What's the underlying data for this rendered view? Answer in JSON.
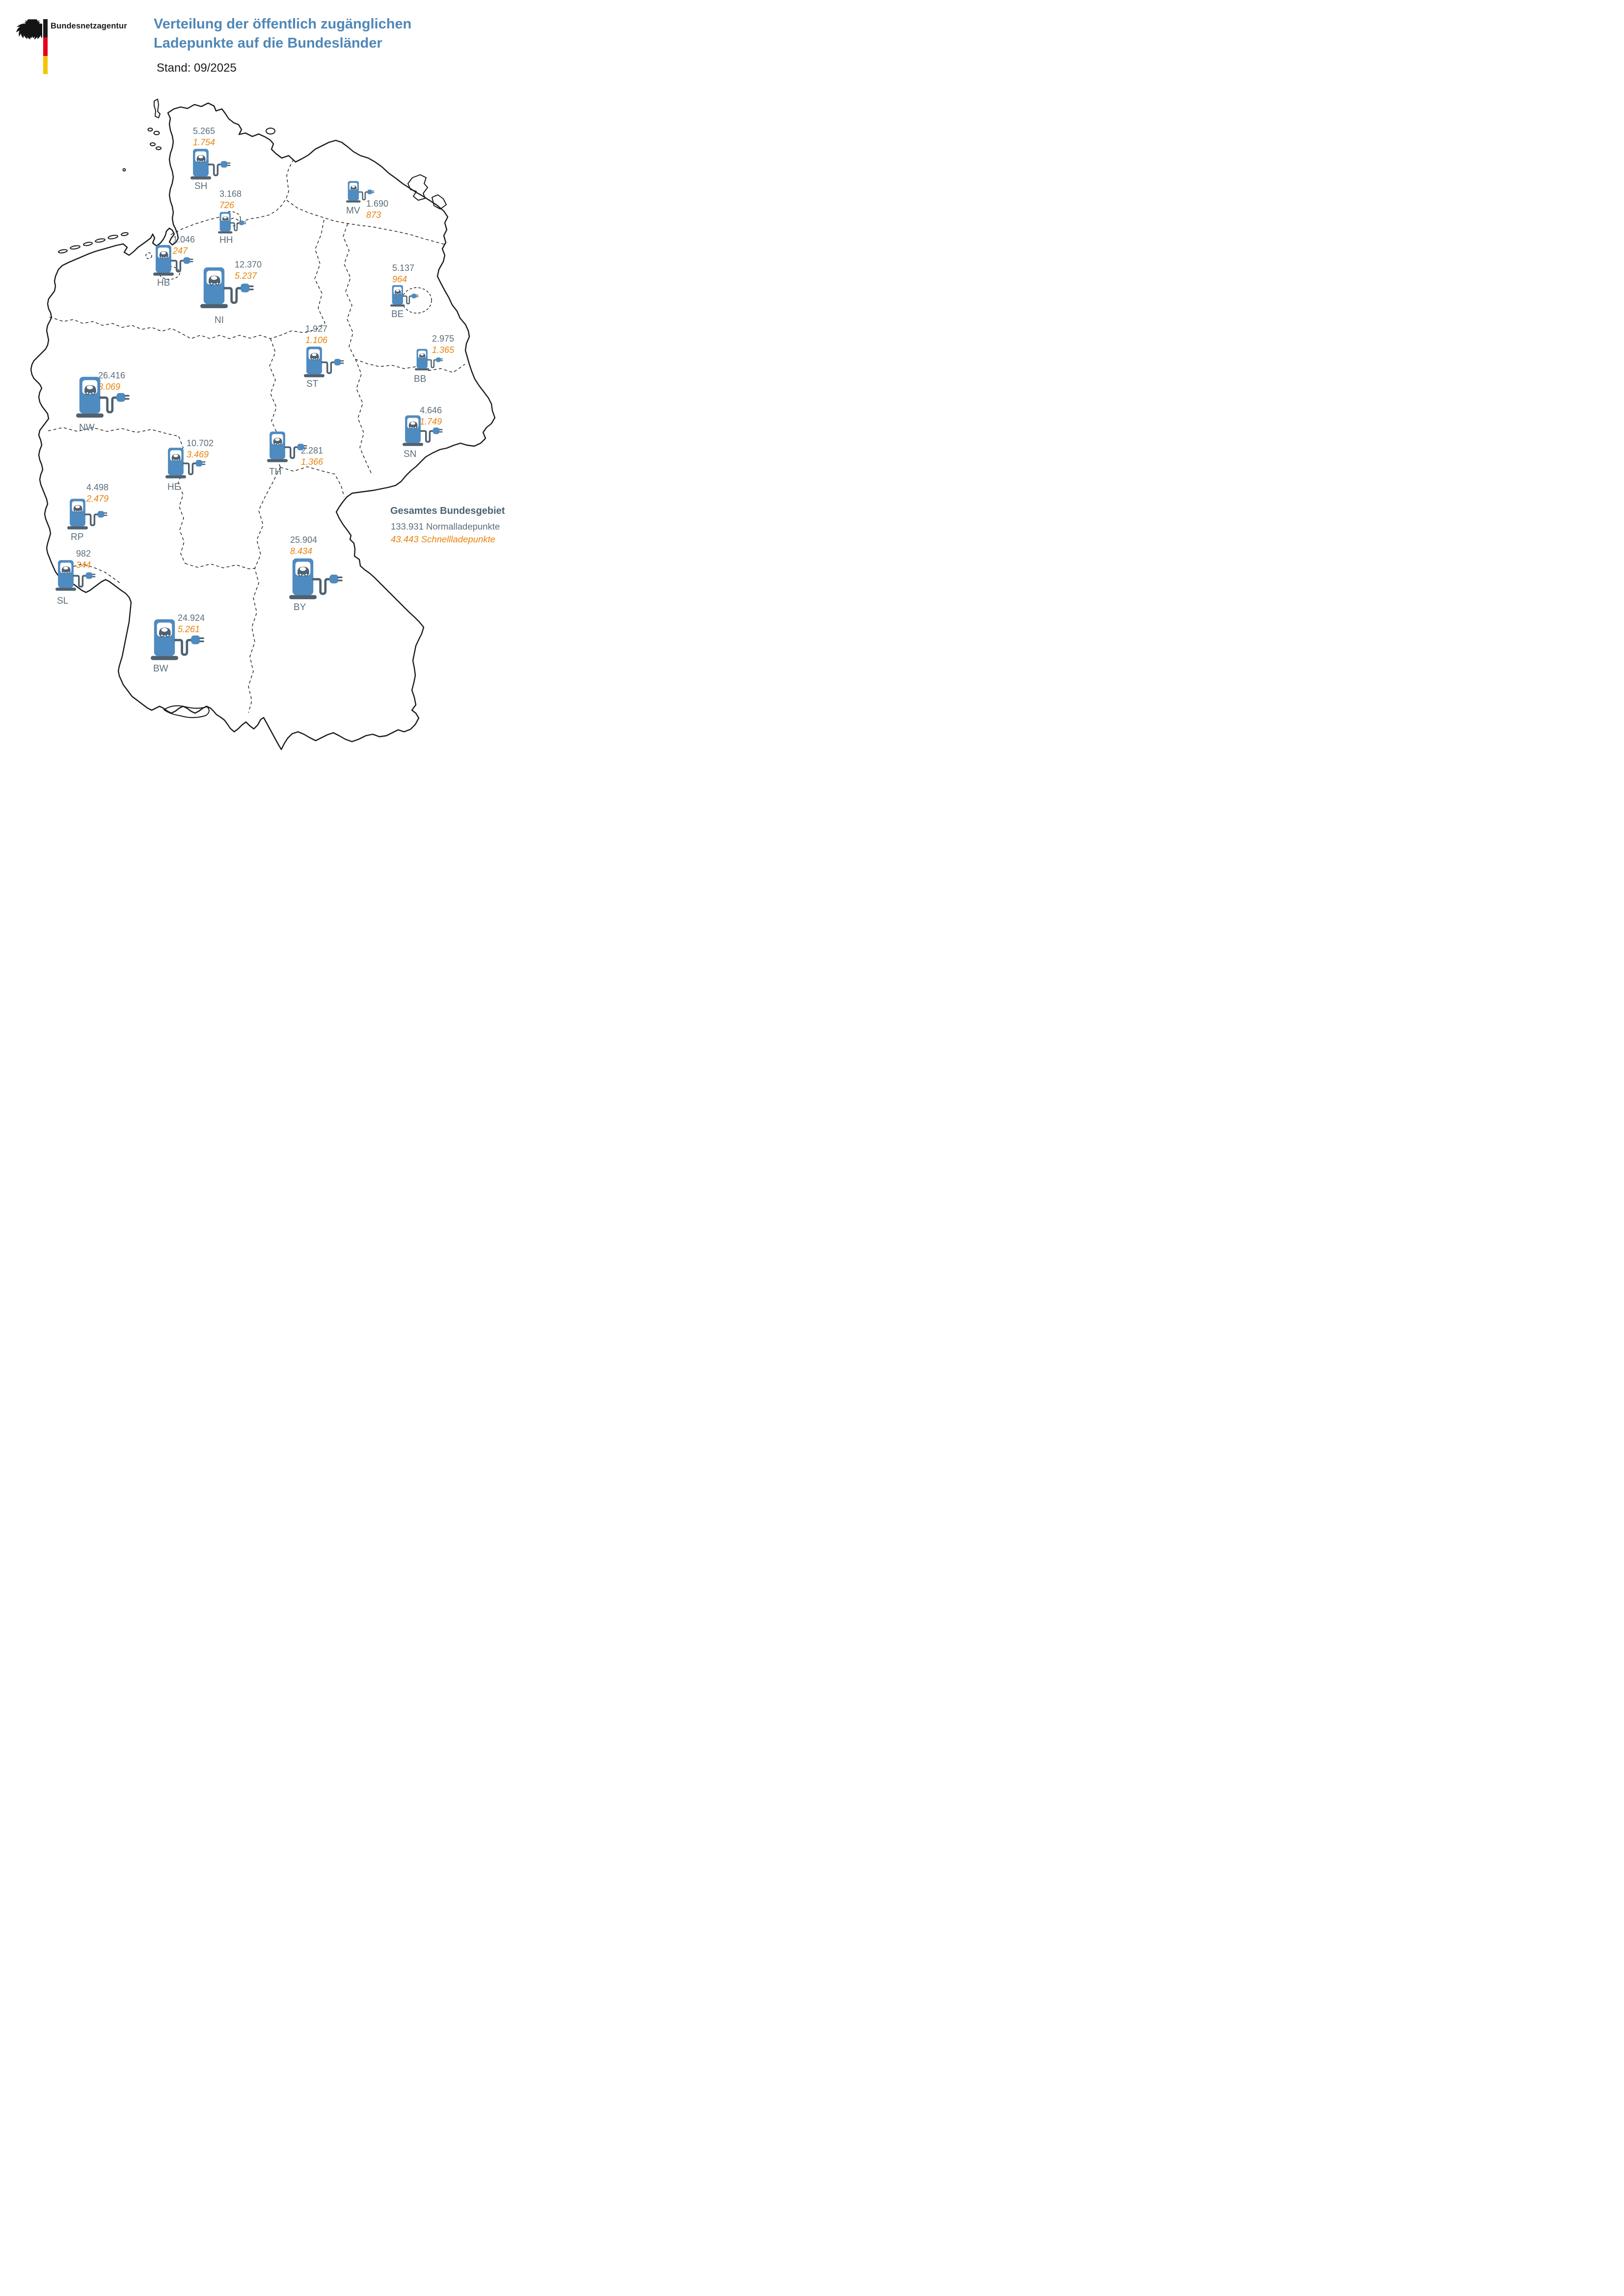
{
  "header": {
    "logo_text": "Bundesnetzagentur",
    "title_line1": "Verteilung der öffentlich zugänglichen",
    "title_line2": "Ladepunkte auf die Bundesländer",
    "date_label": "Stand: 09/2025"
  },
  "legend_total": {
    "title": "Gesamtes Bundesgebiet",
    "normal_label": "133.931 Normalladepunkte",
    "fast_label": "43.443 Schnellladepunkte"
  },
  "colors": {
    "title_blue": "#4f87b7",
    "icon_blue": "#4e8bc0",
    "icon_slate": "#4e6170",
    "value_grey": "#5b6e7b",
    "value_orange": "#e8830a",
    "flag_black": "#1a1a1a",
    "flag_red": "#e2001a",
    "flag_gold": "#f5c400"
  },
  "chart_data": {
    "type": "map",
    "title": "Verteilung der öffentlich zugänglichen Ladepunkte auf die Bundesländer",
    "date": "09/2025",
    "series": [
      {
        "name": "Normalladepunkte",
        "color": "#5b6e7b"
      },
      {
        "name": "Schnellladepunkte",
        "color": "#e8830a"
      }
    ],
    "states": [
      {
        "code": "SH",
        "normal": 5265,
        "fast": 1754
      },
      {
        "code": "HH",
        "normal": 3168,
        "fast": 726
      },
      {
        "code": "MV",
        "normal": 1690,
        "fast": 873
      },
      {
        "code": "HB",
        "normal": 1046,
        "fast": 247
      },
      {
        "code": "NI",
        "normal": 12370,
        "fast": 5237
      },
      {
        "code": "BE",
        "normal": 5137,
        "fast": 964
      },
      {
        "code": "ST",
        "normal": 1927,
        "fast": 1106
      },
      {
        "code": "BB",
        "normal": 2975,
        "fast": 1365
      },
      {
        "code": "NW",
        "normal": 26416,
        "fast": 8069
      },
      {
        "code": "SN",
        "normal": 4646,
        "fast": 1749
      },
      {
        "code": "TH",
        "normal": 2281,
        "fast": 1366
      },
      {
        "code": "HE",
        "normal": 10702,
        "fast": 3469
      },
      {
        "code": "RP",
        "normal": 4498,
        "fast": 2479
      },
      {
        "code": "SL",
        "normal": 982,
        "fast": 344
      },
      {
        "code": "BY",
        "normal": 25904,
        "fast": 8434
      },
      {
        "code": "BW",
        "normal": 24924,
        "fast": 5261
      }
    ],
    "totals": {
      "normal": 133931,
      "fast": 43443
    }
  },
  "markers": [
    {
      "code": "SH",
      "normal": "5.265",
      "fast": "1.754",
      "size": "md",
      "icon": [
        388,
        302
      ],
      "values": [
        393,
        256
      ],
      "label": [
        396,
        369
      ]
    },
    {
      "code": "HH",
      "normal": "3.168",
      "fast": "726",
      "size": "sm",
      "icon": [
        444,
        431
      ],
      "values": [
        447,
        384
      ],
      "label": [
        447,
        479
      ]
    },
    {
      "code": "MV",
      "normal": "1.690",
      "fast": "873",
      "size": "sm",
      "icon": [
        705,
        368
      ],
      "values": [
        746,
        404
      ],
      "label": [
        705,
        419
      ]
    },
    {
      "code": "HB",
      "normal": "1.046",
      "fast": "247",
      "size": "md",
      "icon": [
        312,
        498
      ],
      "values": [
        352,
        477
      ],
      "label": [
        320,
        566
      ]
    },
    {
      "code": "NI",
      "normal": "12.370",
      "fast": "5.237",
      "size": "lg",
      "icon": [
        408,
        543
      ],
      "values": [
        478,
        528
      ],
      "label": [
        437,
        642
      ]
    },
    {
      "code": "BE",
      "normal": "5.137",
      "fast": "964",
      "size": "sm",
      "icon": [
        795,
        580
      ],
      "values": [
        799,
        535
      ],
      "label": [
        797,
        630
      ]
    },
    {
      "code": "ST",
      "normal": "1.927",
      "fast": "1.106",
      "size": "md",
      "icon": [
        619,
        705
      ],
      "values": [
        622,
        659
      ],
      "label": [
        624,
        772
      ]
    },
    {
      "code": "BB",
      "normal": "2.975",
      "fast": "1.365",
      "size": "sm",
      "icon": [
        845,
        710
      ],
      "values": [
        880,
        679
      ],
      "label": [
        843,
        762
      ]
    },
    {
      "code": "NW",
      "normal": "26.416",
      "fast": "8.069",
      "size": "lg",
      "icon": [
        155,
        766
      ],
      "values": [
        200,
        754
      ],
      "label": [
        161,
        861
      ]
    },
    {
      "code": "SN",
      "normal": "4.646",
      "fast": "1.749",
      "size": "md",
      "icon": [
        820,
        845
      ],
      "values": [
        855,
        825
      ],
      "label": [
        822,
        915
      ]
    },
    {
      "code": "TH",
      "normal": "2.281",
      "fast": "1.366",
      "size": "md",
      "icon": [
        544,
        878
      ],
      "values": [
        613,
        907
      ],
      "label": [
        548,
        951
      ]
    },
    {
      "code": "HE",
      "normal": "10.702",
      "fast": "3.469",
      "size": "md",
      "icon": [
        337,
        911
      ],
      "values": [
        380,
        892
      ],
      "label": [
        341,
        982
      ]
    },
    {
      "code": "RP",
      "normal": "4.498",
      "fast": "2.479",
      "size": "md",
      "icon": [
        137,
        1015
      ],
      "values": [
        176,
        982
      ],
      "label": [
        144,
        1084
      ]
    },
    {
      "code": "SL",
      "normal": "982",
      "fast": "344",
      "size": "md",
      "icon": [
        113,
        1140
      ],
      "values": [
        155,
        1117
      ],
      "label": [
        116,
        1214
      ]
    },
    {
      "code": "BY",
      "normal": "25.904",
      "fast": "8.434",
      "size": "lg",
      "icon": [
        589,
        1136
      ],
      "values": [
        591,
        1089
      ],
      "label": [
        598,
        1227
      ]
    },
    {
      "code": "BW",
      "normal": "24.924",
      "fast": "5.261",
      "size": "lg",
      "icon": [
        307,
        1260
      ],
      "values": [
        362,
        1248
      ],
      "label": [
        312,
        1352
      ]
    }
  ],
  "total_block": {
    "pos_title": [
      795,
      1030
    ],
    "pos_normal": [
      796,
      1062
    ],
    "pos_fast": [
      796,
      1088
    ]
  }
}
